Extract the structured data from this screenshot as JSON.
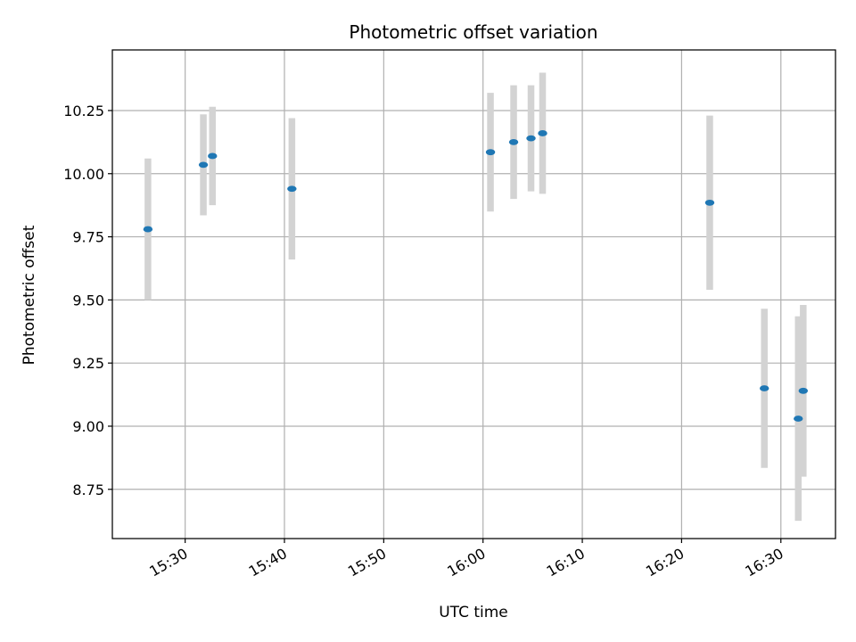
{
  "chart_data": {
    "type": "scatter",
    "title": "Photometric offset variation",
    "xlabel": "UTC time",
    "ylabel": "Photometric offset",
    "xlim": [
      "15:22:40",
      "16:35:30"
    ],
    "ylim": [
      8.555,
      10.49
    ],
    "x_ticks": [
      "15:30",
      "15:40",
      "15:50",
      "16:00",
      "16:10",
      "16:20",
      "16:30"
    ],
    "y_ticks": [
      "8.75",
      "9.00",
      "9.25",
      "9.50",
      "9.75",
      "10.00",
      "10.25"
    ],
    "grid": true,
    "point_color": "#1f77b4",
    "errorbar_color": "#d3d3d3",
    "points": [
      {
        "x": "15:26:15",
        "y": 9.78,
        "yerr": 0.28
      },
      {
        "x": "15:31:50",
        "y": 10.035,
        "yerr": 0.2
      },
      {
        "x": "15:32:45",
        "y": 10.07,
        "yerr": 0.195
      },
      {
        "x": "15:40:45",
        "y": 9.94,
        "yerr": 0.28
      },
      {
        "x": "16:00:45",
        "y": 10.085,
        "yerr": 0.235
      },
      {
        "x": "16:03:05",
        "y": 10.125,
        "yerr": 0.225
      },
      {
        "x": "16:04:50",
        "y": 10.14,
        "yerr": 0.21
      },
      {
        "x": "16:06:00",
        "y": 10.16,
        "yerr": 0.24
      },
      {
        "x": "16:22:50",
        "y": 9.885,
        "yerr": 0.345
      },
      {
        "x": "16:28:20",
        "y": 9.15,
        "yerr": 0.315
      },
      {
        "x": "16:31:45",
        "y": 9.03,
        "yerr": 0.405
      },
      {
        "x": "16:32:15",
        "y": 9.14,
        "yerr": 0.34
      }
    ]
  }
}
